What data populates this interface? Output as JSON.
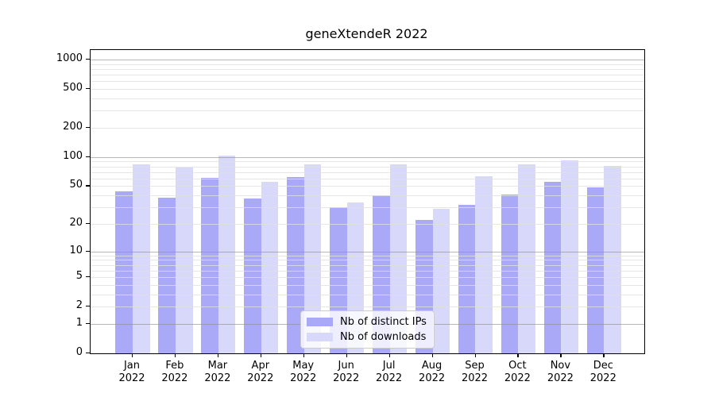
{
  "title": "geneXtendeR 2022",
  "chart_data": {
    "type": "bar",
    "title": "geneXtendeR 2022",
    "categories": [
      "Jan",
      "Feb",
      "Mar",
      "Apr",
      "May",
      "Jun",
      "Jul",
      "Aug",
      "Sep",
      "Oct",
      "Nov",
      "Dec"
    ],
    "year_label": "2022",
    "series": [
      {
        "name": "Nb of distinct IPs",
        "color": "#a9a9f7",
        "values": [
          44,
          38,
          61,
          37,
          62,
          30,
          40,
          22,
          32,
          41,
          56,
          49
        ]
      },
      {
        "name": "Nb of downloads",
        "color": "#d8d8fa",
        "values": [
          85,
          78,
          103,
          55,
          85,
          34,
          85,
          29,
          64,
          85,
          93,
          81
        ]
      }
    ],
    "yscale": "log10(value+1)",
    "ylim": [
      0,
      1252
    ],
    "y_tick_values": [
      1000,
      500,
      200,
      100,
      50,
      20,
      10,
      5,
      2,
      1,
      0
    ],
    "y_tick_labels": [
      "1000",
      "500",
      "200",
      "100",
      "50",
      "20",
      "10",
      "5",
      "2",
      "1",
      "0"
    ],
    "grid": "on",
    "legend_position": "lower-center-inside",
    "background_color": "#ffffff",
    "major_grid_values": [
      1,
      10,
      100,
      1000
    ],
    "minor_grid_values": [
      2,
      3,
      4,
      5,
      6,
      7,
      8,
      9,
      20,
      30,
      40,
      50,
      60,
      70,
      80,
      90,
      200,
      300,
      400,
      500,
      600,
      700,
      800,
      900
    ]
  }
}
